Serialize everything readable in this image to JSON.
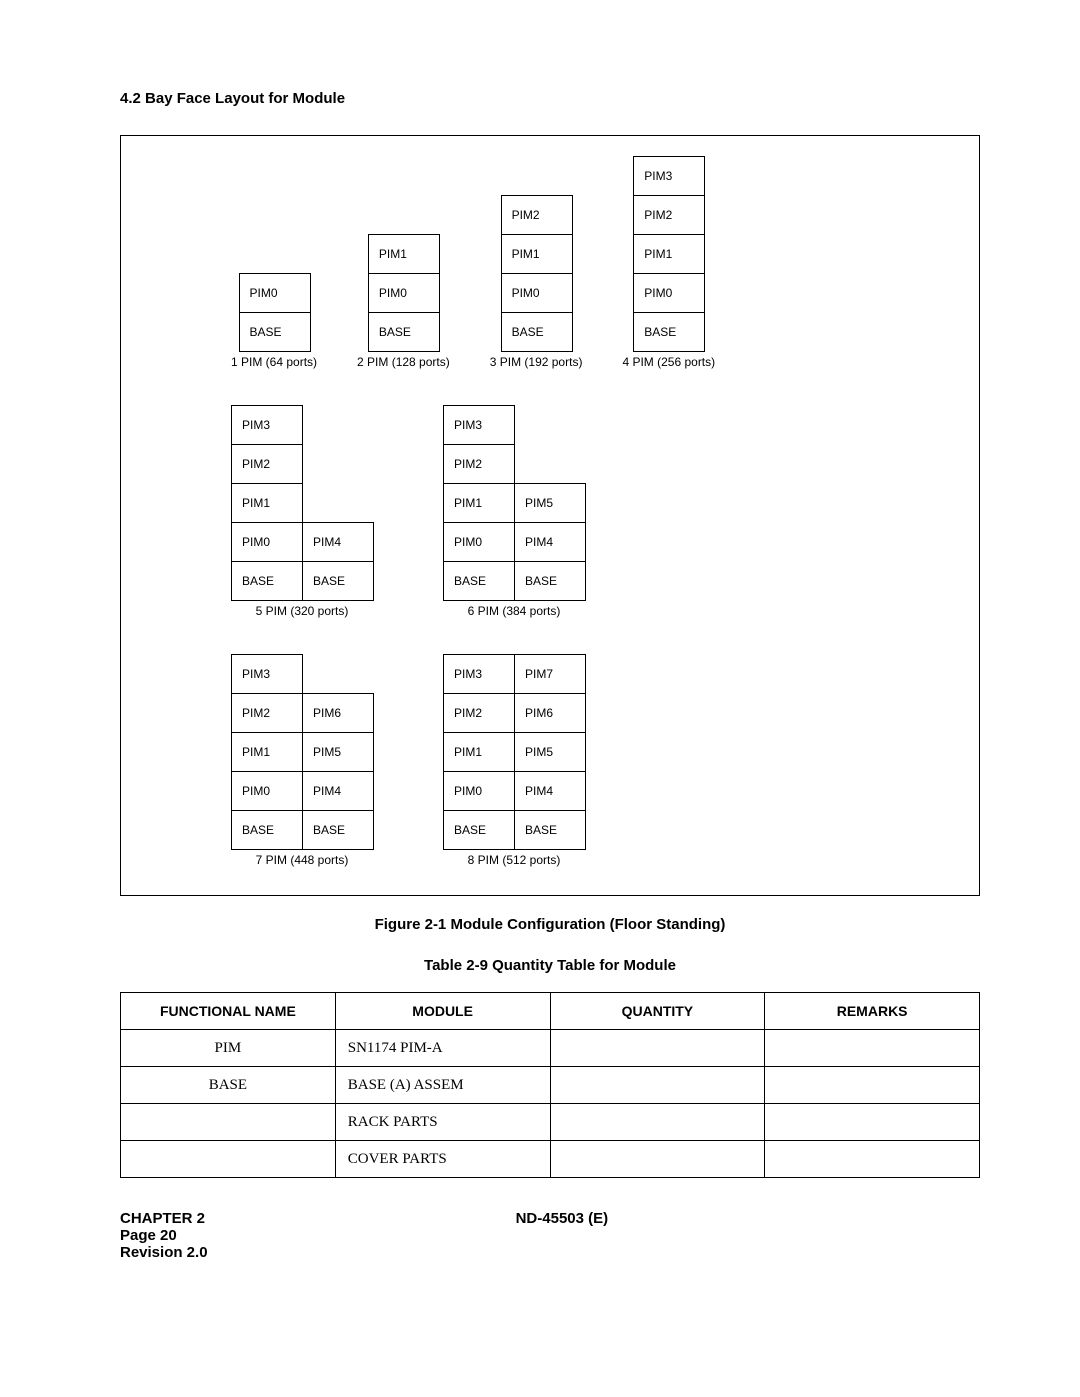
{
  "section_title": "4.2   Bay Face Layout for Module",
  "labels": {
    "BASE": "BASE",
    "PIM0": "PIM0",
    "PIM1": "PIM1",
    "PIM2": "PIM2",
    "PIM3": "PIM3",
    "PIM4": "PIM4",
    "PIM5": "PIM5",
    "PIM6": "PIM6",
    "PIM7": "PIM7"
  },
  "captions": {
    "c1": "1 PIM (64 ports)",
    "c2": "2 PIM (128 ports)",
    "c3": "3 PIM (192 ports)",
    "c4": "4 PIM (256 ports)",
    "c5": "5 PIM (320 ports)",
    "c6": "6 PIM (384 ports)",
    "c7": "7 PIM (448 ports)",
    "c8": "8 PIM (512 ports)"
  },
  "figure_title": "Figure 2-1  Module Configuration (Floor Standing)",
  "table_title": "Table 2-9  Quantity Table for Module",
  "table": {
    "headers": [
      "FUNCTIONAL NAME",
      "MODULE",
      "QUANTITY",
      "REMARKS"
    ],
    "rows": [
      {
        "fn": "PIM",
        "mod": "SN1174 PIM-A",
        "qty": "",
        "rem": ""
      },
      {
        "fn": "BASE",
        "mod": "BASE (A) ASSEM",
        "qty": "",
        "rem": ""
      },
      {
        "fn": "",
        "mod": "RACK PARTS",
        "qty": "",
        "rem": ""
      },
      {
        "fn": "",
        "mod": "COVER PARTS",
        "qty": "",
        "rem": ""
      }
    ]
  },
  "footer": {
    "chapter": "CHAPTER 2",
    "doc": "ND-45503 (E)",
    "page": "Page 20",
    "rev": "Revision 2.0"
  }
}
